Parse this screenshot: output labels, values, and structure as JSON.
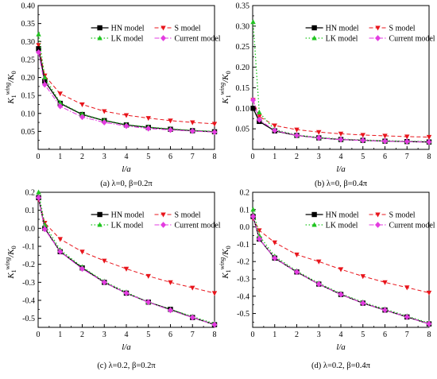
{
  "figure": {
    "legend": {
      "hn": "HN model",
      "s": "S model",
      "lk": "LK model",
      "cur": "Current model"
    },
    "colors": {
      "hn": "#000000",
      "s": "#e8141b",
      "lk": "#1fc41f",
      "cur": "#e33ce0"
    }
  },
  "chart_data": [
    {
      "type": "line",
      "caption": "(a) λ=0, β=0.2π",
      "xlabel": "l/a",
      "ylabel": "K1wing/K0",
      "xlim": [
        0,
        8
      ],
      "ylim": [
        0.0,
        0.4
      ],
      "xticks": [
        0,
        1,
        2,
        3,
        4,
        5,
        6,
        7,
        8
      ],
      "yticks": [
        0.05,
        0.1,
        0.15,
        0.2,
        0.25,
        0.3,
        0.35,
        0.4
      ],
      "ytick_labels": [
        "0.05",
        "0.10",
        "0.15",
        "0.20",
        "0.25",
        "0.30",
        "0.35",
        "0.40"
      ],
      "legend_position": "top-right",
      "series": [
        {
          "key": "hn",
          "name": "HN model",
          "x": [
            0.02,
            0.3,
            1,
            2,
            3,
            4,
            5,
            6,
            7,
            8
          ],
          "y": [
            0.28,
            0.19,
            0.128,
            0.097,
            0.08,
            0.068,
            0.061,
            0.056,
            0.052,
            0.049
          ]
        },
        {
          "key": "s",
          "name": "S model",
          "x": [
            0.02,
            0.3,
            1,
            2,
            3,
            4,
            5,
            6,
            7,
            8
          ],
          "y": [
            0.29,
            0.205,
            0.155,
            0.125,
            0.106,
            0.095,
            0.087,
            0.08,
            0.075,
            0.071
          ]
        },
        {
          "key": "lk",
          "name": "LK model",
          "x": [
            0.02,
            0.3,
            1,
            2,
            3,
            4,
            5,
            6,
            7,
            8
          ],
          "y": [
            0.32,
            0.2,
            0.13,
            0.098,
            0.081,
            0.069,
            0.062,
            0.057,
            0.053,
            0.05
          ]
        },
        {
          "key": "cur",
          "name": "Current model",
          "x": [
            0.02,
            0.3,
            1,
            2,
            3,
            4,
            5,
            6,
            7,
            8
          ],
          "y": [
            0.27,
            0.18,
            0.12,
            0.09,
            0.075,
            0.065,
            0.058,
            0.054,
            0.051,
            0.048
          ]
        }
      ]
    },
    {
      "type": "line",
      "caption": "(b) λ=0, β=0.4π",
      "xlabel": "l/a",
      "ylabel": "K1wing/K0",
      "xlim": [
        0,
        8
      ],
      "ylim": [
        0.0,
        0.35
      ],
      "xticks": [
        0,
        1,
        2,
        3,
        4,
        5,
        6,
        7,
        8
      ],
      "yticks": [
        0.05,
        0.1,
        0.15,
        0.2,
        0.25,
        0.3,
        0.35
      ],
      "ytick_labels": [
        "0.05",
        "0.10",
        "0.15",
        "0.20",
        "0.25",
        "0.30",
        "0.35"
      ],
      "legend_position": "top-right",
      "series": [
        {
          "key": "hn",
          "name": "HN model",
          "x": [
            0.02,
            0.3,
            1,
            2,
            3,
            4,
            5,
            6,
            7,
            8
          ],
          "y": [
            0.1,
            0.068,
            0.045,
            0.034,
            0.028,
            0.024,
            0.022,
            0.02,
            0.019,
            0.018
          ]
        },
        {
          "key": "s",
          "name": "S model",
          "x": [
            0.02,
            0.3,
            1,
            2,
            3,
            4,
            5,
            6,
            7,
            8
          ],
          "y": [
            0.12,
            0.08,
            0.058,
            0.048,
            0.042,
            0.038,
            0.035,
            0.033,
            0.031,
            0.03
          ]
        },
        {
          "key": "lk",
          "name": "LK model",
          "x": [
            0.02,
            0.3,
            1,
            2,
            3,
            4,
            5,
            6,
            7,
            8
          ],
          "y": [
            0.31,
            0.09,
            0.048,
            0.035,
            0.029,
            0.025,
            0.023,
            0.021,
            0.02,
            0.019
          ]
        },
        {
          "key": "cur",
          "name": "Current model",
          "x": [
            0.02,
            0.3,
            1,
            2,
            3,
            4,
            5,
            6,
            7,
            8
          ],
          "y": [
            0.12,
            0.072,
            0.046,
            0.034,
            0.028,
            0.024,
            0.022,
            0.02,
            0.019,
            0.018
          ]
        }
      ]
    },
    {
      "type": "line",
      "caption": "(c) λ=0.2, β=0.2π",
      "xlabel": "l/a",
      "ylabel": "K1wing/K0",
      "xlim": [
        0,
        8
      ],
      "ylim": [
        -0.55,
        0.2
      ],
      "xticks": [
        0,
        1,
        2,
        3,
        4,
        5,
        6,
        7,
        8
      ],
      "yticks": [
        -0.5,
        -0.4,
        -0.3,
        -0.2,
        -0.1,
        0.0,
        0.1,
        0.2
      ],
      "ytick_labels": [
        "-0.5",
        "-0.4",
        "-0.3",
        "-0.2",
        "-0.1",
        "0.0",
        "0.1",
        "0.2"
      ],
      "legend_position": "top-right",
      "series": [
        {
          "key": "hn",
          "name": "HN model",
          "x": [
            0.02,
            0.3,
            1,
            2,
            3,
            4,
            5,
            6,
            7,
            8
          ],
          "y": [
            0.17,
            0.0,
            -0.13,
            -0.22,
            -0.3,
            -0.36,
            -0.41,
            -0.45,
            -0.495,
            -0.535
          ]
        },
        {
          "key": "s",
          "name": "S model",
          "x": [
            0.02,
            0.3,
            1,
            2,
            3,
            4,
            5,
            6,
            7,
            8
          ],
          "y": [
            0.16,
            0.03,
            -0.06,
            -0.13,
            -0.18,
            -0.225,
            -0.265,
            -0.3,
            -0.33,
            -0.36
          ]
        },
        {
          "key": "lk",
          "name": "LK model",
          "x": [
            0.02,
            0.3,
            1,
            2,
            3,
            4,
            5,
            6,
            7,
            8
          ],
          "y": [
            0.2,
            0.02,
            -0.12,
            -0.215,
            -0.295,
            -0.355,
            -0.41,
            -0.45,
            -0.49,
            -0.53
          ]
        },
        {
          "key": "cur",
          "name": "Current model",
          "x": [
            0.02,
            0.3,
            1,
            2,
            3,
            4,
            5,
            6,
            7,
            8
          ],
          "y": [
            0.17,
            -0.005,
            -0.13,
            -0.225,
            -0.3,
            -0.36,
            -0.41,
            -0.455,
            -0.495,
            -0.535
          ]
        }
      ]
    },
    {
      "type": "line",
      "caption": "(d) λ=0.2, β=0.4π",
      "xlabel": "l/a",
      "ylabel": "K1wing/K0",
      "xlim": [
        0,
        8
      ],
      "ylim": [
        -0.58,
        0.2
      ],
      "xticks": [
        0,
        1,
        2,
        3,
        4,
        5,
        6,
        7,
        8
      ],
      "yticks": [
        -0.5,
        -0.4,
        -0.3,
        -0.2,
        -0.1,
        0.0,
        0.1,
        0.2
      ],
      "ytick_labels": [
        "-0.5",
        "-0.4",
        "-0.3",
        "-0.2",
        "-0.1",
        "0.0",
        "0.1",
        "0.2"
      ],
      "legend_position": "top-right",
      "series": [
        {
          "key": "hn",
          "name": "HN model",
          "x": [
            0.02,
            0.3,
            1,
            2,
            3,
            4,
            5,
            6,
            7,
            8
          ],
          "y": [
            0.06,
            -0.07,
            -0.18,
            -0.26,
            -0.33,
            -0.39,
            -0.44,
            -0.48,
            -0.52,
            -0.56
          ]
        },
        {
          "key": "s",
          "name": "S model",
          "x": [
            0.02,
            0.3,
            1,
            2,
            3,
            4,
            5,
            6,
            7,
            8
          ],
          "y": [
            0.05,
            -0.02,
            -0.09,
            -0.16,
            -0.2,
            -0.245,
            -0.285,
            -0.32,
            -0.35,
            -0.38
          ]
        },
        {
          "key": "lk",
          "name": "LK model",
          "x": [
            0.02,
            0.3,
            1,
            2,
            3,
            4,
            5,
            6,
            7,
            8
          ],
          "y": [
            0.1,
            -0.05,
            -0.17,
            -0.255,
            -0.325,
            -0.385,
            -0.435,
            -0.475,
            -0.515,
            -0.555
          ]
        },
        {
          "key": "cur",
          "name": "Current model",
          "x": [
            0.02,
            0.3,
            1,
            2,
            3,
            4,
            5,
            6,
            7,
            8
          ],
          "y": [
            0.06,
            -0.07,
            -0.18,
            -0.26,
            -0.33,
            -0.39,
            -0.44,
            -0.48,
            -0.52,
            -0.56
          ]
        }
      ]
    }
  ]
}
